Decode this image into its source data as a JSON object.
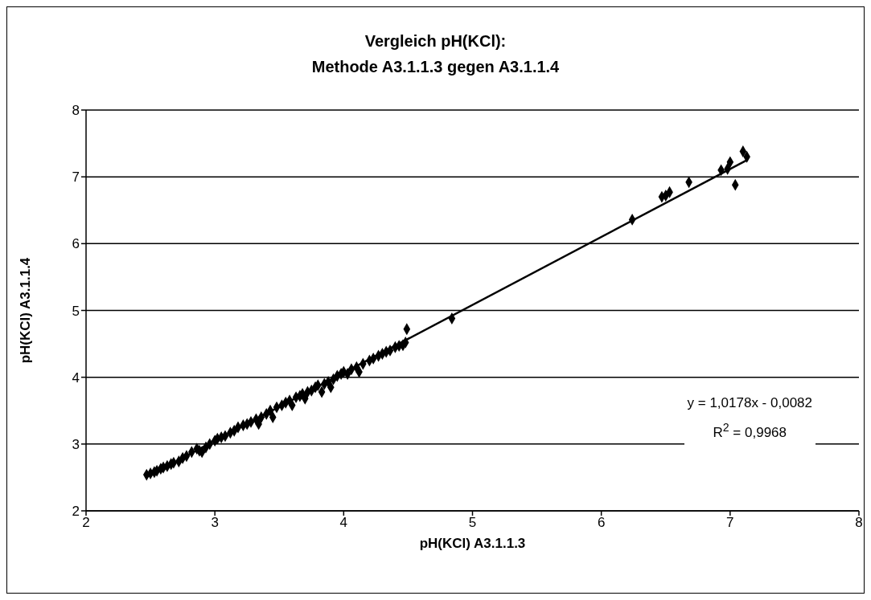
{
  "chart_data": {
    "type": "scatter",
    "title": "Vergleich pH(KCl):\nMethode A3.1.1.3 gegen A3.1.1.4",
    "xlabel": "pH(KCl) A3.1.1.3",
    "ylabel": "pH(KCl) A3.1.1.4",
    "annotations": [
      "y = 1,0178x - 0,0082",
      "R$^{2}$ = 0,9968"
    ],
    "xlim": [
      2,
      8
    ],
    "xticks": [
      2,
      3,
      4,
      5,
      6,
      7,
      8
    ],
    "ylim": [
      2,
      8
    ],
    "yticks": [
      2,
      3,
      4,
      5,
      6,
      7,
      8
    ],
    "grid": "y",
    "legend": false,
    "marker": "diamond",
    "series": [
      {
        "color": "#000000",
        "x": [
          2.47,
          2.5,
          2.53,
          2.55,
          2.58,
          2.6,
          2.63,
          2.66,
          2.68,
          2.72,
          2.75,
          2.78,
          2.82,
          2.86,
          2.88,
          2.9,
          2.93,
          2.96,
          3.0,
          3.02,
          3.05,
          3.08,
          3.12,
          3.15,
          3.18,
          3.22,
          3.25,
          3.28,
          3.32,
          3.34,
          3.36,
          3.4,
          3.43,
          3.45,
          3.48,
          3.52,
          3.55,
          3.58,
          3.6,
          3.63,
          3.66,
          3.68,
          3.7,
          3.72,
          3.75,
          3.78,
          3.8,
          3.83,
          3.85,
          3.88,
          3.9,
          3.92,
          3.95,
          3.98,
          4.0,
          4.03,
          4.06,
          4.1,
          4.12,
          4.15,
          4.2,
          4.23,
          4.27,
          4.3,
          4.33,
          4.36,
          4.4,
          4.43,
          4.46,
          4.48,
          4.49,
          4.84,
          6.24,
          6.47,
          6.5,
          6.53,
          6.68,
          6.93,
          6.98,
          7.0,
          7.04,
          7.1,
          7.13
        ],
        "values": [
          2.54,
          2.56,
          2.58,
          2.6,
          2.63,
          2.65,
          2.67,
          2.7,
          2.72,
          2.74,
          2.79,
          2.82,
          2.88,
          2.93,
          2.9,
          2.88,
          2.95,
          3.0,
          3.05,
          3.08,
          3.1,
          3.12,
          3.17,
          3.2,
          3.25,
          3.28,
          3.3,
          3.33,
          3.37,
          3.3,
          3.4,
          3.45,
          3.5,
          3.4,
          3.55,
          3.58,
          3.62,
          3.65,
          3.58,
          3.7,
          3.72,
          3.75,
          3.68,
          3.78,
          3.8,
          3.85,
          3.88,
          3.78,
          3.9,
          3.93,
          3.85,
          3.97,
          4.02,
          4.05,
          4.08,
          4.05,
          4.12,
          4.15,
          4.08,
          4.2,
          4.25,
          4.28,
          4.32,
          4.35,
          4.38,
          4.4,
          4.45,
          4.47,
          4.48,
          4.52,
          4.72,
          4.88,
          6.36,
          6.7,
          6.72,
          6.77,
          6.92,
          7.1,
          7.12,
          7.22,
          6.88,
          7.38,
          7.3
        ]
      },
      {
        "type": "line",
        "color": "#000000",
        "x": [
          2.47,
          7.13
        ],
        "values": [
          2.51,
          7.25
        ],
        "marker": "none",
        "line_style": "solid"
      }
    ]
  }
}
